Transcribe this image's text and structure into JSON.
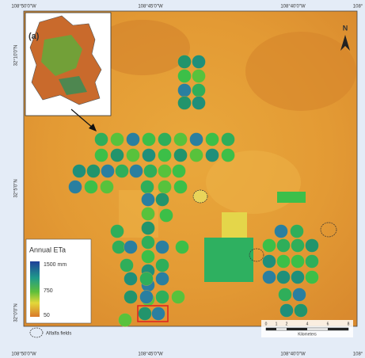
{
  "labels": {
    "panel": "(a)",
    "north": "N"
  },
  "axes": {
    "top": [
      "108°50'0\"W",
      "108°45'0\"W",
      "108°40'0\"W",
      "108°"
    ],
    "bottom": [
      "108°50'0\"W",
      "108°45'0\"W",
      "108°40'0\"W",
      "108°"
    ],
    "left": [
      "32°10'0\"N",
      "32°5'0\"N",
      "32°0'0\"N"
    ]
  },
  "legend": {
    "title": "Annual ETa",
    "max": "1500 mm",
    "mid": "750",
    "min": "50",
    "alfalfa": "Alfalfa fields"
  },
  "scale_bar": {
    "ticks": [
      "0",
      "1",
      "2",
      "4",
      "6",
      "8"
    ],
    "unit": "Kilometers"
  }
}
